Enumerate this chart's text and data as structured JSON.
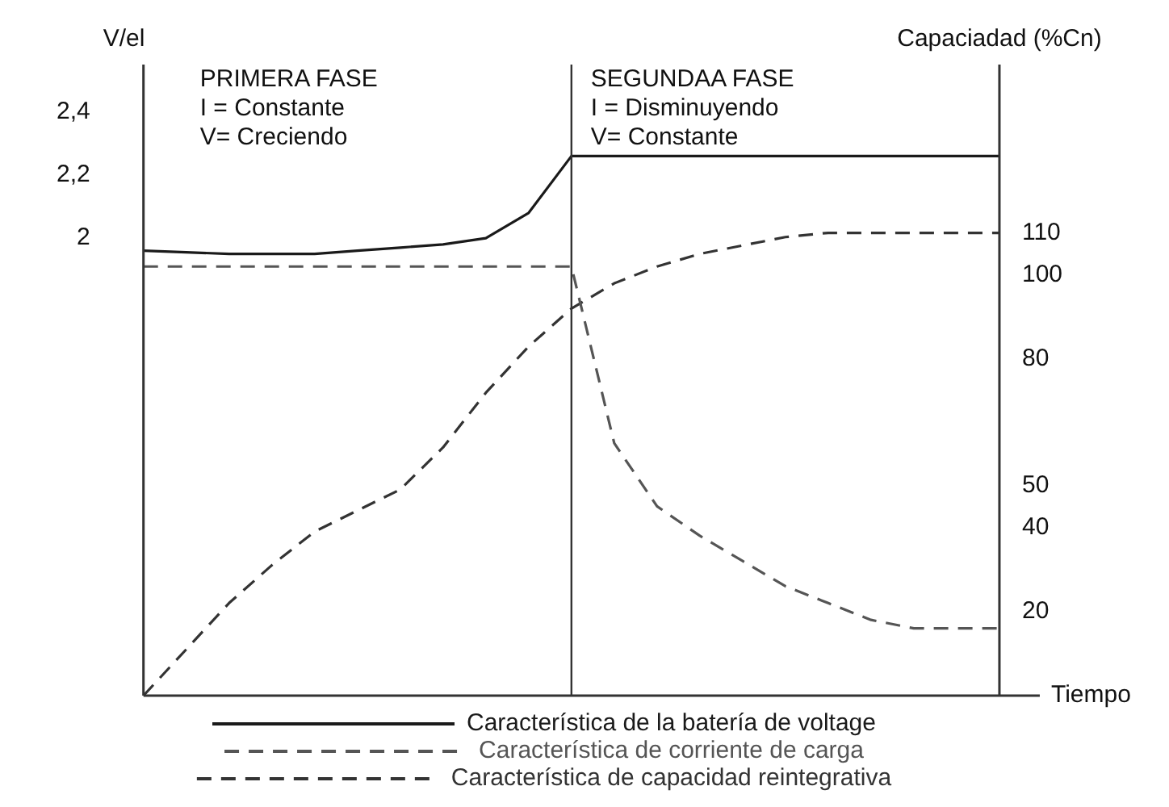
{
  "chart_data": {
    "type": "line",
    "ylabel": "V/el",
    "y2label": "Capaciadad (%Cn)",
    "xlabel": "Tiempo",
    "tick_labels": "y",
    "categories": [
      null,
      null,
      null,
      null,
      null,
      null,
      null,
      null,
      null,
      null,
      null,
      null,
      null,
      null,
      null,
      null,
      null,
      null,
      null,
      null,
      null
    ],
    "ylim": [
      0.55,
      2.55
    ],
    "yticks": [
      {
        "value": 2,
        "label": "2"
      },
      {
        "value": 2.2,
        "label": "2,2"
      },
      {
        "value": 2.4,
        "label": "2,4"
      }
    ],
    "y2lim": [
      0,
      150
    ],
    "y2ticks": [
      20,
      40,
      50,
      80,
      100,
      110
    ],
    "annotations": [
      "PRIMERA FASE\nI = Constante\nV= Creciendo",
      "SEGUNDAA FASE\nI = Disminuyendo\nV= Constante"
    ],
    "ref_lines": [
      {
        "axis": "x",
        "color": "#333333"
      }
    ],
    "legend": "bottom",
    "marker": "none",
    "grid": false,
    "series": [
      {
        "name": "Característica de la batería de voltage",
        "color": "#1a1a1a",
        "line_style": "solid",
        "values": [
          1.96,
          1.955,
          1.95,
          1.95,
          1.95,
          1.96,
          1.97,
          1.98,
          2.0,
          2.08,
          2.26,
          2.26,
          2.26,
          2.26,
          2.26,
          2.26,
          2.26,
          2.26,
          2.26,
          2.26,
          2.26
        ]
      },
      {
        "name": "Característica de corriente de carga",
        "color": "#555555",
        "line_style": "dashed",
        "axis": "y2",
        "values": [
          102,
          102,
          102,
          102,
          102,
          102,
          102,
          102,
          102,
          102,
          102,
          60,
          45,
          38,
          32,
          26,
          22,
          18,
          16,
          16,
          16
        ]
      },
      {
        "name": "Característica de capacidad reintegrativa",
        "color": "#333333",
        "line_style": "dashed",
        "axis": "y2",
        "values": [
          0,
          11,
          22,
          31,
          39,
          44,
          49,
          59,
          72,
          83,
          92,
          98,
          102,
          105,
          107,
          109,
          110,
          110,
          110,
          110,
          110
        ]
      }
    ]
  }
}
